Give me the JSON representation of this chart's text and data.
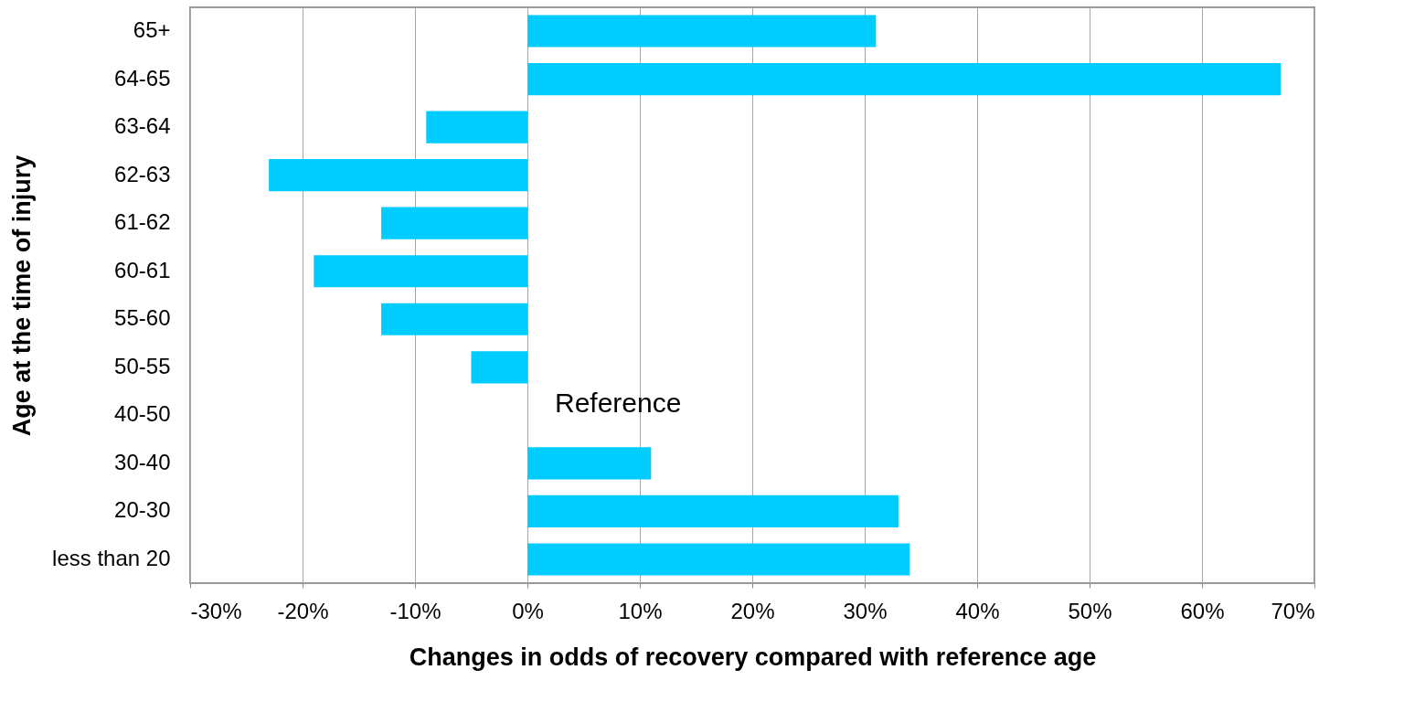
{
  "chart_data": {
    "type": "bar",
    "orientation": "horizontal",
    "xlabel": "Changes in odds of recovery compared with reference age",
    "ylabel": "Age at the time of injury",
    "categories": [
      "65+",
      "64-65",
      "63-64",
      "62-63",
      "61-62",
      "60-61",
      "55-60",
      "50-55",
      "40-50",
      "30-40",
      "20-30",
      "less than 20"
    ],
    "values": [
      31,
      67,
      -9,
      -23,
      -13,
      -19,
      -13,
      -5,
      null,
      11,
      33,
      34
    ],
    "color": "#00ccff",
    "xlim": [
      -30,
      70
    ],
    "xticks": [
      {
        "value": -30,
        "label": "-30%"
      },
      {
        "value": -20,
        "label": "-20%"
      },
      {
        "value": -10,
        "label": "-10%"
      },
      {
        "value": 0,
        "label": "0%"
      },
      {
        "value": 10,
        "label": "10%"
      },
      {
        "value": 20,
        "label": "20%"
      },
      {
        "value": 30,
        "label": "30%"
      },
      {
        "value": 40,
        "label": "40%"
      },
      {
        "value": 50,
        "label": "50%"
      },
      {
        "value": 60,
        "label": "60%"
      },
      {
        "value": 70,
        "label": "70%"
      }
    ],
    "grid": "x",
    "annotations": [
      "Reference"
    ]
  }
}
